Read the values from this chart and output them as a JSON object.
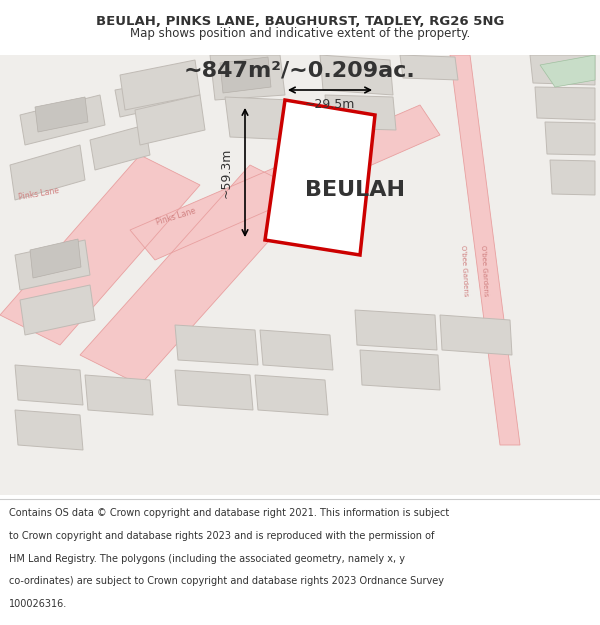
{
  "title_line1": "BEULAH, PINKS LANE, BAUGHURST, TADLEY, RG26 5NG",
  "title_line2": "Map shows position and indicative extent of the property.",
  "area_text": "~847m²/~0.209ac.",
  "property_name": "BEULAH",
  "dim_vertical": "~59.3m",
  "dim_horizontal": "~29.5m",
  "footer_text": "Contains OS data © Crown copyright and database right 2021. This information is subject to Crown copyright and database rights 2023 and is reproduced with the permission of HM Land Registry. The polygons (including the associated geometry, namely x, y co-ordinates) are subject to Crown copyright and database rights 2023 Ordnance Survey 100026316.",
  "bg_color": "#f5f5f0",
  "map_bg": "#f0eeeb",
  "road_color": "#f5c8c8",
  "road_line_color": "#e8a0a0",
  "building_fill": "#d8d5d0",
  "building_edge": "#c0bbb5",
  "property_fill": "#ffffff",
  "property_edge": "#cc0000",
  "green_fill": "#c8ddc8",
  "title_color": "#333333",
  "footer_color": "#333333"
}
